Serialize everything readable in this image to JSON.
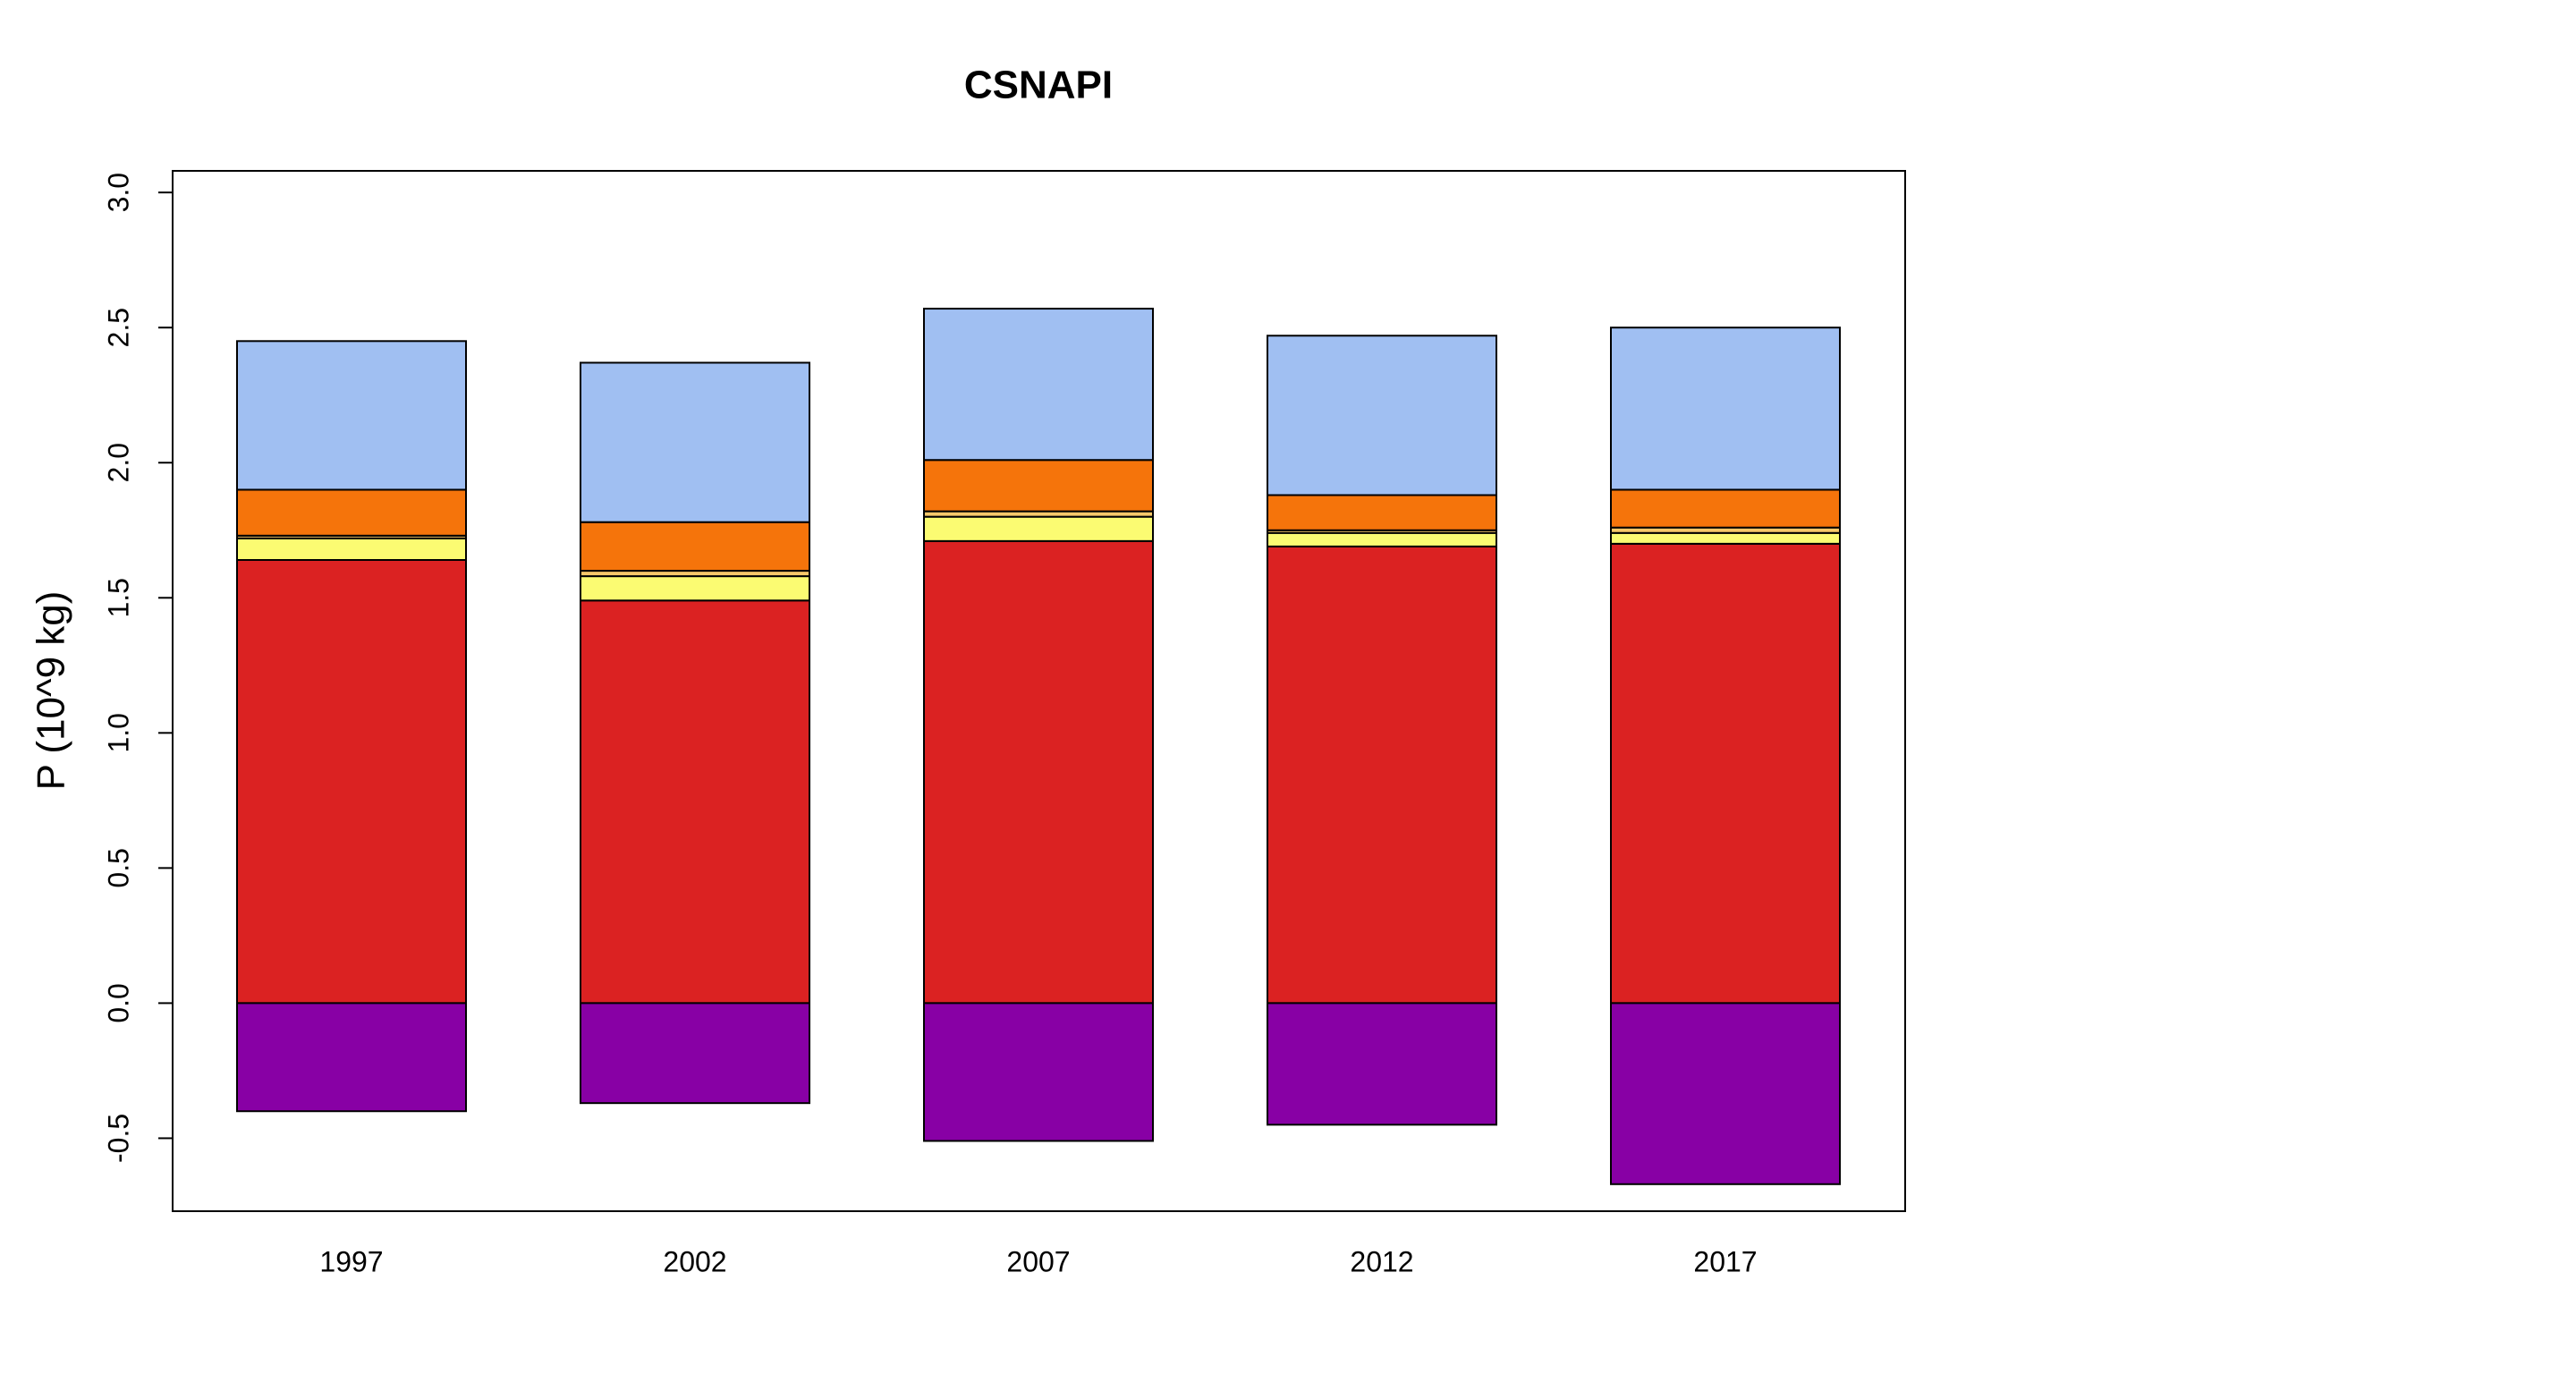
{
  "chart_data": {
    "type": "stacked_bar",
    "title": "CSNAPI",
    "y_label": "P (10^9 kg)",
    "categories": [
      "1997",
      "2002",
      "2007",
      "2012",
      "2017"
    ],
    "series": [
      {
        "color": "#db2222",
        "values": [
          1.64,
          1.49,
          1.71,
          1.69,
          1.7
        ]
      },
      {
        "color": "#fbfb72",
        "values": [
          0.08,
          0.09,
          0.09,
          0.05,
          0.04
        ]
      },
      {
        "color": "#f6c86a",
        "values": [
          0.01,
          0.02,
          0.02,
          0.01,
          0.02
        ]
      },
      {
        "color": "#f5740b",
        "values": [
          0.17,
          0.18,
          0.19,
          0.13,
          0.14
        ]
      },
      {
        "color": "#a0bff2",
        "values": [
          0.55,
          0.59,
          0.56,
          0.59,
          0.6
        ]
      },
      {
        "color": "#8800a5",
        "values": [
          -0.4,
          -0.37,
          -0.51,
          -0.45,
          -0.67
        ]
      }
    ],
    "ylim": [
      -0.77,
      3.08
    ],
    "yticks": [
      {
        "value": -0.5,
        "label": "-0.5"
      },
      {
        "value": 0,
        "label": "0.0"
      },
      {
        "value": 0.5,
        "label": "0.5"
      },
      {
        "value": 1,
        "label": "1.0"
      },
      {
        "value": 1.5,
        "label": "1.5"
      },
      {
        "value": 2,
        "label": "2.0"
      },
      {
        "value": 2.5,
        "label": "2.5"
      },
      {
        "value": 3,
        "label": "3.0"
      }
    ]
  }
}
